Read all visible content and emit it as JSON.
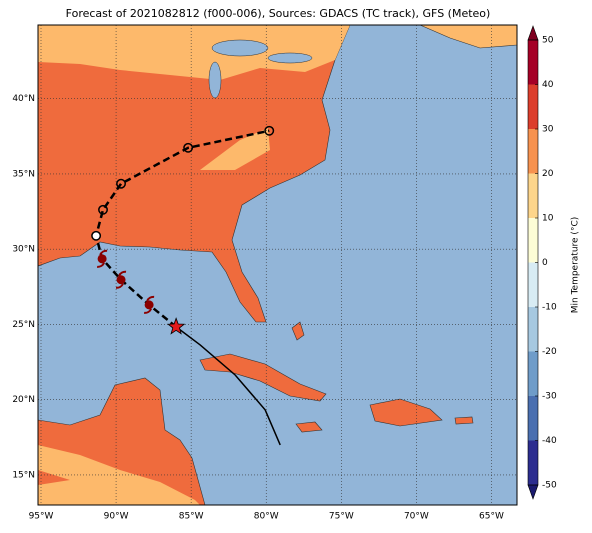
{
  "chart_data": {
    "type": "map",
    "title": "Forecast of 2021082812 (f000-006), Sources: GDACS (TC track), GFS (Meteo)",
    "xlim": [
      -95.2,
      -63.3
    ],
    "ylim": [
      13.0,
      44.9
    ],
    "xticks": [
      {
        "value": -95,
        "label": "95°W"
      },
      {
        "value": -90,
        "label": "90°W"
      },
      {
        "value": -85,
        "label": "85°W"
      },
      {
        "value": -80,
        "label": "80°W"
      },
      {
        "value": -75,
        "label": "75°W"
      },
      {
        "value": -70,
        "label": "70°W"
      },
      {
        "value": -65,
        "label": "65°W"
      }
    ],
    "yticks": [
      {
        "value": 15,
        "label": "15°N"
      },
      {
        "value": 20,
        "label": "20°N"
      },
      {
        "value": 25,
        "label": "25°N"
      },
      {
        "value": 30,
        "label": "30°N"
      },
      {
        "value": 35,
        "label": "35°N"
      },
      {
        "value": 40,
        "label": "40°N"
      }
    ],
    "grid": true,
    "track": {
      "lon": [
        -86.0,
        -87.8,
        -89.67,
        -90.93,
        -91.33,
        -90.87,
        -89.67,
        -85.2,
        -79.8
      ],
      "lat": [
        24.84,
        26.3,
        27.97,
        29.36,
        30.89,
        32.62,
        34.35,
        36.74,
        37.87
      ],
      "marker": [
        "star",
        "hurricane",
        "hurricane",
        "hurricane",
        "open-circle-white",
        "open-circle",
        "open-circle",
        "open-circle",
        "open-circle"
      ]
    },
    "past_track": {
      "lon": [
        -86.0,
        -84.4,
        -82.07,
        -80.07,
        -79.07
      ],
      "lat": [
        24.84,
        23.64,
        21.64,
        19.32,
        16.99
      ]
    },
    "colorbar": {
      "label": "Min Temperature (°C)",
      "lim": [
        -50,
        50
      ],
      "ticks": [
        -50,
        -40,
        -30,
        -20,
        -10,
        0,
        10,
        20,
        30,
        40,
        50
      ],
      "colors": [
        "#2c2d8f",
        "#4a6fb0",
        "#6f9cc9",
        "#a6c8e0",
        "#d8ecf4",
        "#fdfdd6",
        "#fdd58b",
        "#f7924f",
        "#dc3e2c",
        "#a50026"
      ],
      "under_color": "#1a1a6e",
      "over_color": "#7f0020"
    }
  }
}
